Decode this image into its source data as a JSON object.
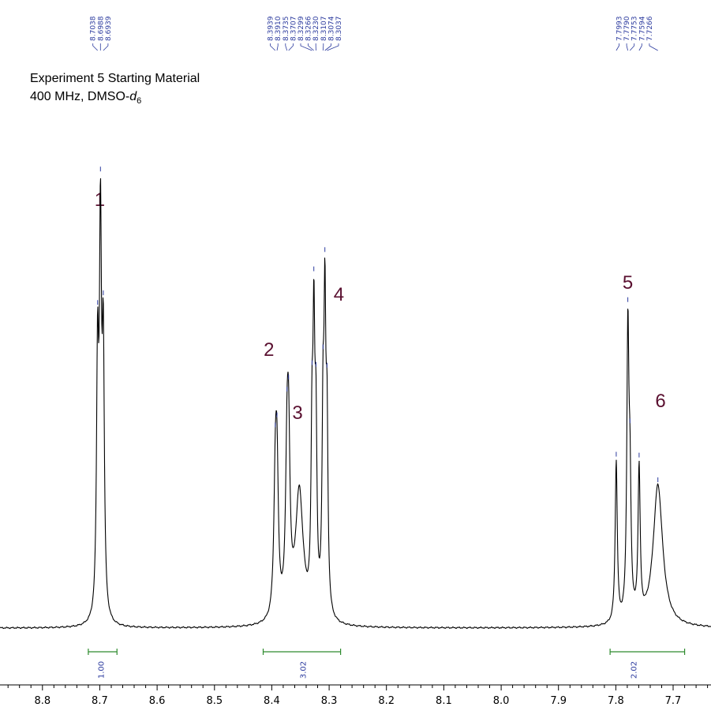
{
  "colors": {
    "spectrum": "#000000",
    "peaklist": "#2b3a9e",
    "integral": "#2e8b2e",
    "peak_number": "#5a1030",
    "axis": "#000000"
  },
  "chart_data": {
    "type": "line",
    "title": "Experiment 5 Starting Material",
    "subtitle_prefix": "400 MHz, DMSO-",
    "subtitle_solvent": "d",
    "subtitle_subscript": "6",
    "xlabel": "",
    "ylabel": "",
    "x_reversed": true,
    "xlim": [
      8.874,
      7.634
    ],
    "ticks": [
      "8.8",
      "8.7",
      "8.6",
      "8.5",
      "8.4",
      "8.3",
      "8.2",
      "8.1",
      "8.0",
      "7.9",
      "7.8",
      "7.7"
    ],
    "tick_values": [
      8.8,
      8.7,
      8.6,
      8.5,
      8.4,
      8.3,
      8.2,
      8.1,
      8.0,
      7.9,
      7.8,
      7.7
    ],
    "grid": false,
    "peak_list": [
      {
        "ppm": 8.7038,
        "label": "8.7038"
      },
      {
        "ppm": 8.6988,
        "label": "8.6988"
      },
      {
        "ppm": 8.6939,
        "label": "8.6939"
      },
      {
        "ppm": 8.3939,
        "label": "8.3939"
      },
      {
        "ppm": 8.391,
        "label": "8.3910"
      },
      {
        "ppm": 8.3735,
        "label": "8.3735"
      },
      {
        "ppm": 8.3707,
        "label": "8.3707"
      },
      {
        "ppm": 8.3299,
        "label": "8.3299"
      },
      {
        "ppm": 8.3266,
        "label": "8.3266"
      },
      {
        "ppm": 8.323,
        "label": "8.3230"
      },
      {
        "ppm": 8.3107,
        "label": "8.3107"
      },
      {
        "ppm": 8.3074,
        "label": "8.3074"
      },
      {
        "ppm": 8.3037,
        "label": "8.3037"
      },
      {
        "ppm": 7.7993,
        "label": "7.7993"
      },
      {
        "ppm": 7.779,
        "label": "7.7790"
      },
      {
        "ppm": 7.7753,
        "label": "7.7753"
      },
      {
        "ppm": 7.7594,
        "label": "7.7594"
      },
      {
        "ppm": 7.7266,
        "label": "7.7266"
      }
    ],
    "peak_numbers": [
      {
        "label": "1",
        "ppm": 8.7,
        "height": 1.07
      },
      {
        "label": "2",
        "ppm": 8.405,
        "height": 0.69
      },
      {
        "label": "3",
        "ppm": 8.355,
        "height": 0.53
      },
      {
        "label": "4",
        "ppm": 8.283,
        "height": 0.83
      },
      {
        "label": "5",
        "ppm": 7.779,
        "height": 0.86
      },
      {
        "label": "6",
        "ppm": 7.722,
        "height": 0.56
      }
    ],
    "integrals": [
      {
        "from": 8.72,
        "to": 8.67,
        "value": "1.00",
        "label_ppm": 8.697
      },
      {
        "from": 8.415,
        "to": 8.28,
        "value": "3.02",
        "label_ppm": 8.345
      },
      {
        "from": 7.81,
        "to": 7.68,
        "value": "2.02",
        "label_ppm": 7.768
      }
    ],
    "peaks": [
      {
        "ppm": 8.7038,
        "height": 0.63,
        "width": 0.0022
      },
      {
        "ppm": 8.6988,
        "height": 0.94,
        "width": 0.0022
      },
      {
        "ppm": 8.6939,
        "height": 0.65,
        "width": 0.0022
      },
      {
        "ppm": 8.3939,
        "height": 0.3,
        "width": 0.003
      },
      {
        "ppm": 8.391,
        "height": 0.34,
        "width": 0.003
      },
      {
        "ppm": 8.3735,
        "height": 0.33,
        "width": 0.003
      },
      {
        "ppm": 8.3707,
        "height": 0.38,
        "width": 0.003
      },
      {
        "ppm": 8.352,
        "height": 0.33,
        "width": 0.008
      },
      {
        "ppm": 8.3299,
        "height": 0.4,
        "width": 0.002
      },
      {
        "ppm": 8.3266,
        "height": 0.64,
        "width": 0.002
      },
      {
        "ppm": 8.323,
        "height": 0.42,
        "width": 0.002
      },
      {
        "ppm": 8.3107,
        "height": 0.44,
        "width": 0.002
      },
      {
        "ppm": 8.3074,
        "height": 0.7,
        "width": 0.002
      },
      {
        "ppm": 8.3037,
        "height": 0.44,
        "width": 0.002
      },
      {
        "ppm": 7.7993,
        "height": 0.41,
        "width": 0.0022
      },
      {
        "ppm": 7.779,
        "height": 0.72,
        "width": 0.0022
      },
      {
        "ppm": 7.7753,
        "height": 0.3,
        "width": 0.0022
      },
      {
        "ppm": 7.7594,
        "height": 0.38,
        "width": 0.0022
      },
      {
        "ppm": 7.7266,
        "height": 0.36,
        "width": 0.01
      }
    ]
  }
}
